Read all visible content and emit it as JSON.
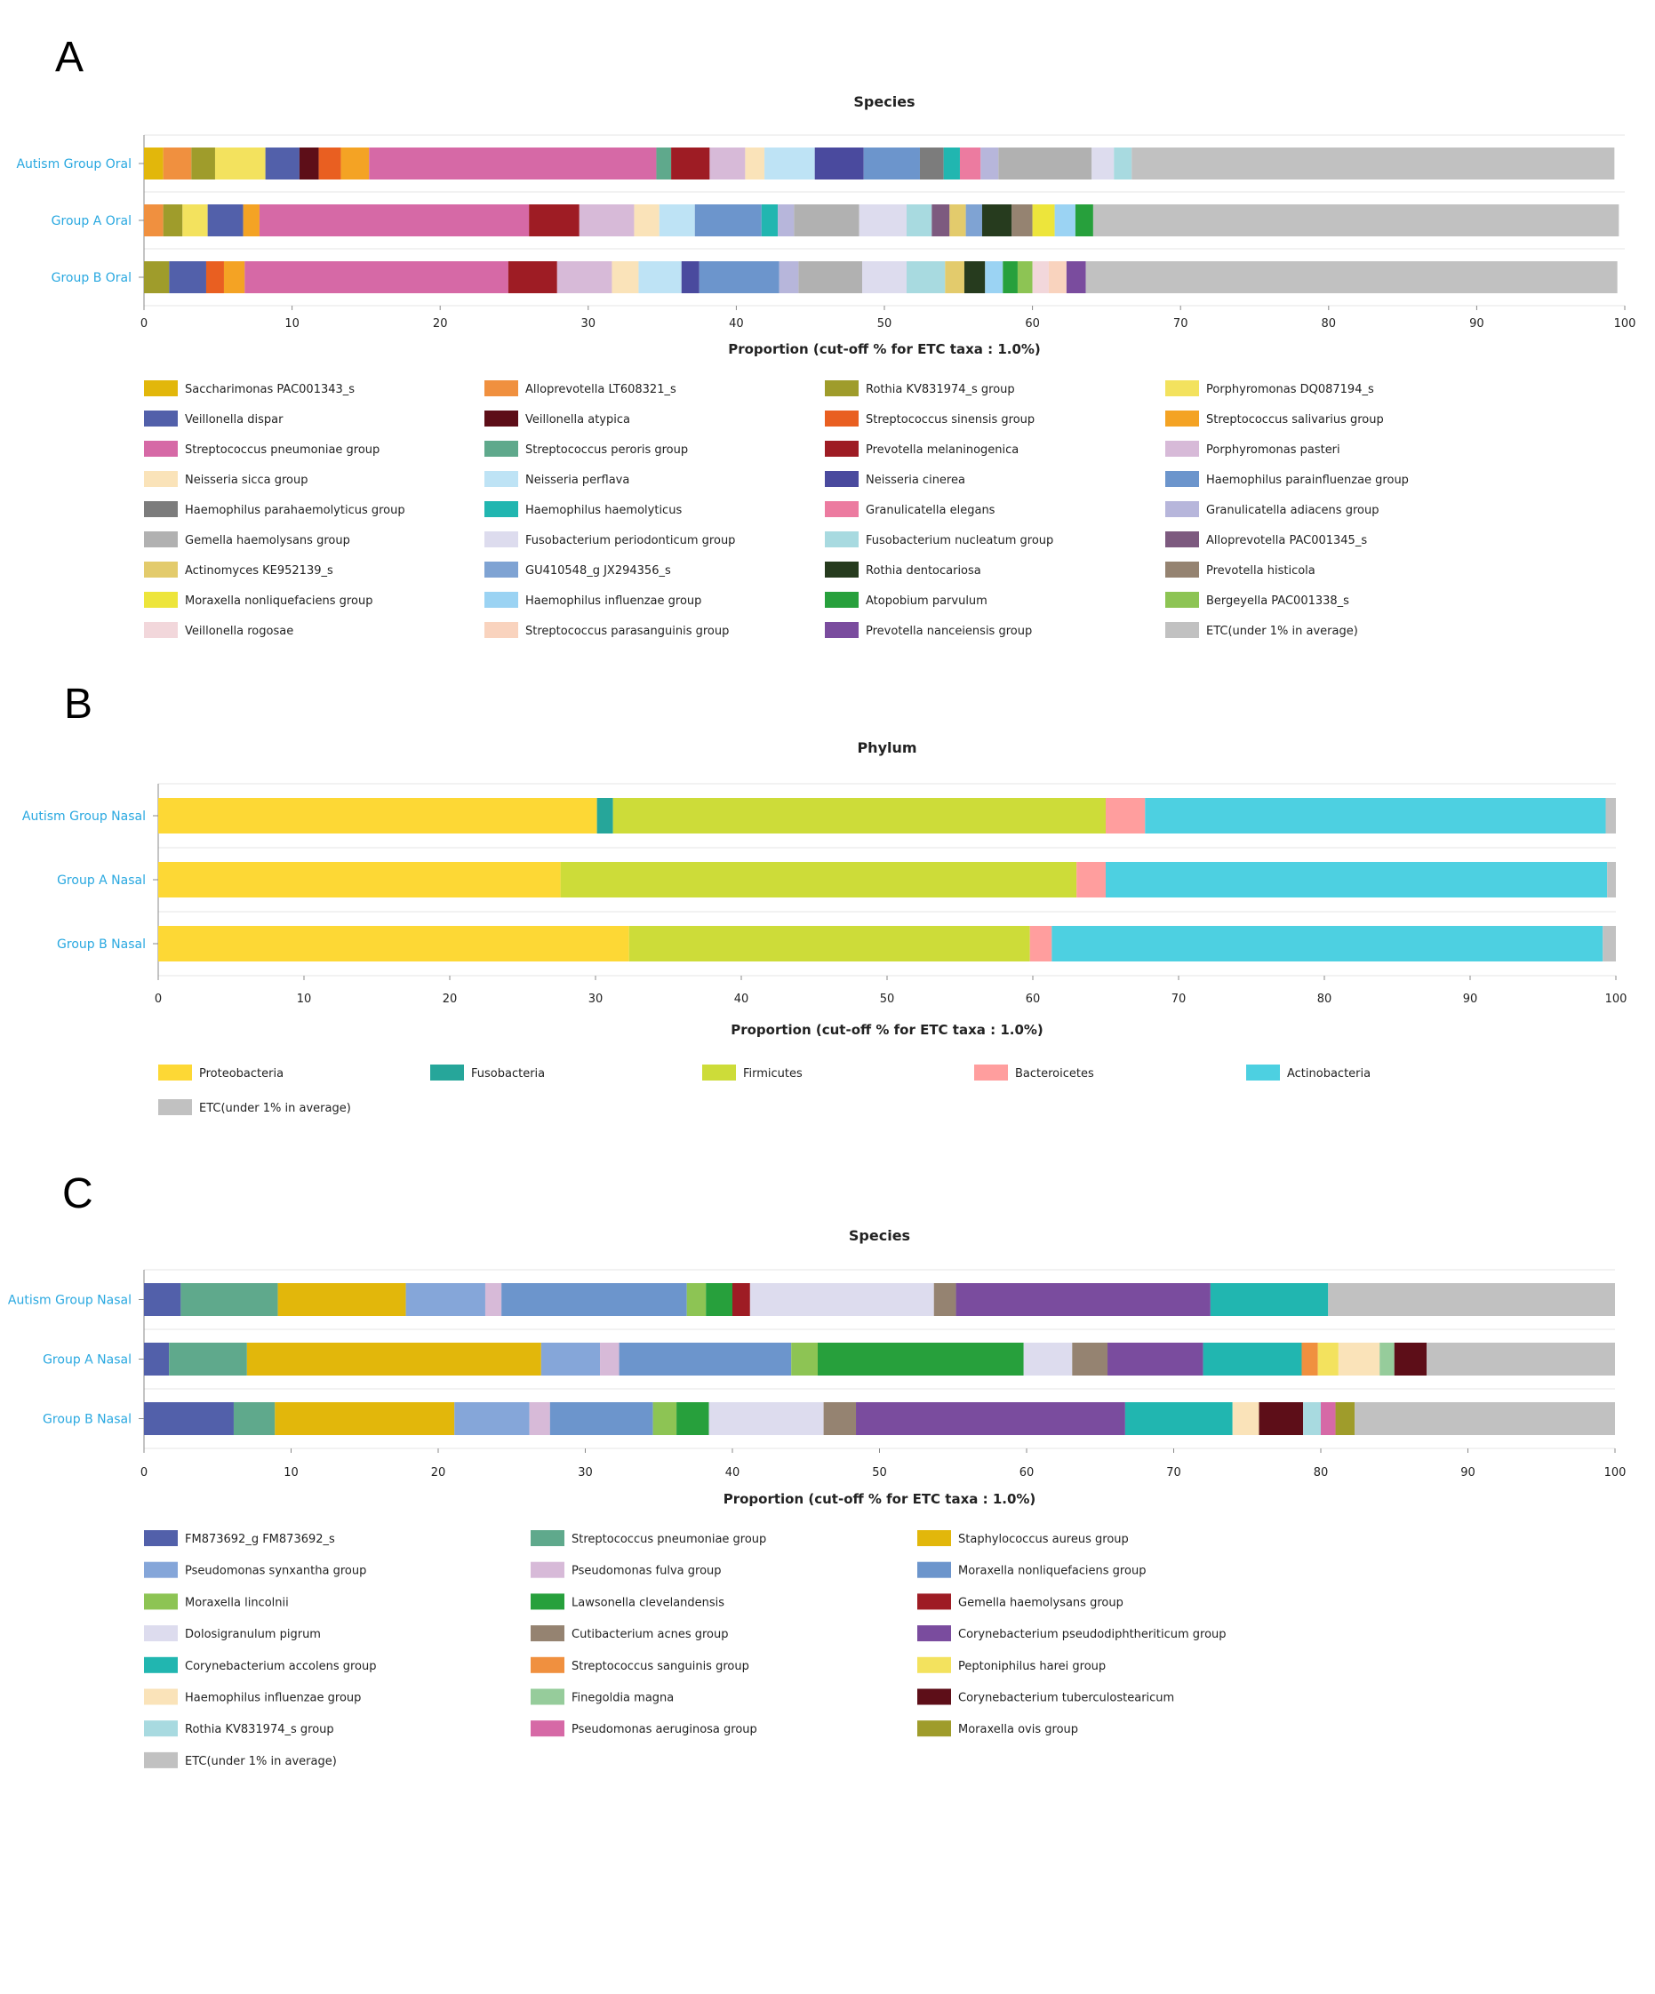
{
  "panels": [
    {
      "letter": "A"
    },
    {
      "letter": "B"
    },
    {
      "letter": "C"
    }
  ],
  "chart_data": [
    {
      "type": "bar",
      "orientation": "horizontal",
      "stacked": true,
      "title": "Species",
      "xlabel": "Proportion (cut-off % for ETC taxa : 1.0%)",
      "xlim": [
        0,
        100
      ],
      "xticks": [
        0,
        10,
        20,
        30,
        40,
        50,
        60,
        70,
        80,
        90,
        100
      ],
      "categories": [
        "Autism Group Oral",
        "Group A Oral",
        "Group B Oral"
      ],
      "legend_position": "bottom",
      "series": [
        {
          "name": "Saccharimonas PAC001343_s",
          "color": "#E2B70B",
          "values": [
            1.3,
            0,
            0
          ]
        },
        {
          "name": "Alloprevotella LT608321_s",
          "color": "#F0903F",
          "values": [
            1.9,
            1.3,
            0
          ]
        },
        {
          "name": "Rothia KV831974_s group",
          "color": "#9F9C2B",
          "values": [
            1.6,
            1.3,
            1.7
          ]
        },
        {
          "name": "Porphyromonas DQ087194_s",
          "color": "#F3E25E",
          "values": [
            3.4,
            1.7,
            0
          ]
        },
        {
          "name": "Veillonella dispar",
          "color": "#5260AA",
          "values": [
            2.3,
            2.4,
            2.5
          ]
        },
        {
          "name": "Veillonella atypica",
          "color": "#5D0E18",
          "values": [
            1.3,
            0,
            0
          ]
        },
        {
          "name": "Streptococcus sinensis group",
          "color": "#E95F21",
          "values": [
            1.5,
            0,
            1.2
          ]
        },
        {
          "name": "Streptococcus salivarius group",
          "color": "#F4A324",
          "values": [
            1.9,
            1.1,
            1.4
          ]
        },
        {
          "name": "Streptococcus pneumoniae group",
          "color": "#D669A6",
          "values": [
            19.4,
            18.2,
            17.8
          ]
        },
        {
          "name": "Streptococcus peroris group",
          "color": "#5FA98C",
          "values": [
            1.0,
            0,
            0
          ]
        },
        {
          "name": "Prevotella melaninogenica",
          "color": "#9E1C24",
          "values": [
            2.6,
            3.4,
            3.3
          ]
        },
        {
          "name": "Porphyromonas pasteri",
          "color": "#D7BAD8",
          "values": [
            2.4,
            3.7,
            3.7
          ]
        },
        {
          "name": "Neisseria sicca group",
          "color": "#FAE3B9",
          "values": [
            1.3,
            1.7,
            1.8
          ]
        },
        {
          "name": "Neisseria perflava",
          "color": "#BEE3F5",
          "values": [
            3.4,
            2.4,
            2.9
          ]
        },
        {
          "name": "Neisseria cinerea",
          "color": "#4A4A9E",
          "values": [
            3.3,
            0,
            1.2
          ]
        },
        {
          "name": "Haemophilus parainfluenzae group",
          "color": "#6C95CC",
          "values": [
            3.8,
            4.5,
            5.4
          ]
        },
        {
          "name": "Haemophilus parahaemolyticus group",
          "color": "#7C7C7C",
          "values": [
            1.6,
            0,
            0
          ]
        },
        {
          "name": "Haemophilus haemolyticus",
          "color": "#21B6B0",
          "values": [
            1.1,
            1.1,
            0
          ]
        },
        {
          "name": "Granulicatella elegans",
          "color": "#EC7BA0",
          "values": [
            1.4,
            0,
            0
          ]
        },
        {
          "name": "Granulicatella adiacens group",
          "color": "#B7B6DB",
          "values": [
            1.2,
            1.1,
            1.3
          ]
        },
        {
          "name": "Gemella haemolysans group",
          "color": "#B1B1B1",
          "values": [
            6.3,
            4.4,
            4.3
          ]
        },
        {
          "name": "Fusobacterium periodonticum group",
          "color": "#DDDCEE",
          "values": [
            1.5,
            3.2,
            3.0
          ]
        },
        {
          "name": "Fusobacterium nucleatum group",
          "color": "#A8DAE0",
          "values": [
            1.2,
            1.7,
            2.6
          ]
        },
        {
          "name": "Alloprevotella PAC001345_s",
          "color": "#7D5A7F",
          "values": [
            0,
            1.2,
            0
          ]
        },
        {
          "name": "Actinomyces KE952139_s",
          "color": "#E3CB6C",
          "values": [
            0,
            1.1,
            1.3
          ]
        },
        {
          "name": "GU410548_g JX294356_s",
          "color": "#7FA3D3",
          "values": [
            0,
            1.1,
            0
          ]
        },
        {
          "name": "Rothia dentocariosa",
          "color": "#263B1E",
          "values": [
            0,
            2.0,
            1.4
          ]
        },
        {
          "name": "Prevotella histicola",
          "color": "#958371",
          "values": [
            0,
            1.4,
            0
          ]
        },
        {
          "name": "Moraxella nonliquefaciens group",
          "color": "#EDE53B",
          "values": [
            0,
            1.5,
            0
          ]
        },
        {
          "name": "Haemophilus influenzae group",
          "color": "#9BD3F3",
          "values": [
            0,
            1.4,
            1.2
          ]
        },
        {
          "name": "Atopobium parvulum",
          "color": "#27A03C",
          "values": [
            0,
            1.2,
            1.0
          ]
        },
        {
          "name": "Bergeyella PAC001338_s",
          "color": "#8DC454",
          "values": [
            0,
            0,
            1.0
          ]
        },
        {
          "name": "Veillonella rogosae",
          "color": "#F2D7DB",
          "values": [
            0,
            0,
            1.1
          ]
        },
        {
          "name": "Streptococcus parasanguinis group",
          "color": "#F9D3BE",
          "values": [
            0,
            0,
            1.2
          ]
        },
        {
          "name": "Prevotella nanceiensis group",
          "color": "#7A4C9E",
          "values": [
            0,
            0,
            1.3
          ]
        },
        {
          "name": "ETC(under 1% in average)",
          "color": "#C1C1C1",
          "values": [
            32.6,
            35.5,
            35.9
          ]
        }
      ]
    },
    {
      "type": "bar",
      "orientation": "horizontal",
      "stacked": true,
      "title": "Phylum",
      "xlabel": "Proportion (cut-off % for ETC taxa : 1.0%)",
      "xlim": [
        0,
        100
      ],
      "xticks": [
        0,
        10,
        20,
        30,
        40,
        50,
        60,
        70,
        80,
        90,
        100
      ],
      "categories": [
        "Autism Group Nasal",
        "Group A Nasal",
        "Group B Nasal"
      ],
      "legend_position": "bottom",
      "series": [
        {
          "name": "Proteobacteria",
          "color": "#FDD835",
          "values": [
            30.1,
            27.6,
            32.3
          ]
        },
        {
          "name": "Fusobacteria",
          "color": "#26A69A",
          "values": [
            1.1,
            0,
            0
          ]
        },
        {
          "name": "Firmicutes",
          "color": "#CDDC39",
          "values": [
            33.8,
            35.4,
            27.5
          ]
        },
        {
          "name": "Bacteroicetes",
          "color": "#FF9E9E",
          "values": [
            2.7,
            2.0,
            1.5
          ]
        },
        {
          "name": "Actinobacteria",
          "color": "#4DD0E1",
          "values": [
            31.6,
            34.4,
            37.8
          ]
        },
        {
          "name": "ETC(under 1% in average)",
          "color": "#C1C1C1",
          "values": [
            0.7,
            0.6,
            0.9
          ]
        }
      ]
    },
    {
      "type": "bar",
      "orientation": "horizontal",
      "stacked": true,
      "title": "Species",
      "xlabel": "Proportion (cut-off % for ETC taxa : 1.0%)",
      "xlim": [
        0,
        100
      ],
      "xticks": [
        0,
        10,
        20,
        30,
        40,
        50,
        60,
        70,
        80,
        90,
        100
      ],
      "categories": [
        "Autism Group Nasal",
        "Group A Nasal",
        "Group B Nasal"
      ],
      "legend_position": "bottom",
      "series": [
        {
          "name": "FM873692_g FM873692_s",
          "color": "#5260AA",
          "values": [
            2.5,
            1.7,
            6.1
          ]
        },
        {
          "name": "Streptococcus pneumoniae group",
          "color": "#5FA98C",
          "values": [
            6.6,
            5.3,
            2.8
          ]
        },
        {
          "name": "Staphylococcus aureus group",
          "color": "#E2B70B",
          "values": [
            8.7,
            20.0,
            12.2
          ]
        },
        {
          "name": "Pseudomonas synxantha group",
          "color": "#85A6D9",
          "values": [
            5.4,
            4.0,
            5.1
          ]
        },
        {
          "name": "Pseudomonas fulva group",
          "color": "#D7BAD8",
          "values": [
            1.1,
            1.3,
            1.4
          ]
        },
        {
          "name": "Moraxella nonliquefaciens group",
          "color": "#6C95CC",
          "values": [
            12.6,
            11.7,
            7.0
          ]
        },
        {
          "name": "Moraxella lincolnii",
          "color": "#8DC454",
          "values": [
            1.3,
            1.8,
            1.6
          ]
        },
        {
          "name": "Lawsonella clevelandensis",
          "color": "#27A03C",
          "values": [
            1.8,
            14.0,
            2.2
          ]
        },
        {
          "name": "Gemella haemolysans group",
          "color": "#9E1C24",
          "values": [
            1.2,
            0,
            0
          ]
        },
        {
          "name": "Dolosigranulum pigrum",
          "color": "#DDDCEE",
          "values": [
            12.5,
            3.3,
            7.8
          ]
        },
        {
          "name": "Cutibacterium acnes group",
          "color": "#958371",
          "values": [
            1.5,
            2.4,
            2.2
          ]
        },
        {
          "name": "Corynebacterium pseudodiphtheriticum group",
          "color": "#7A4C9E",
          "values": [
            17.3,
            6.5,
            18.3
          ]
        },
        {
          "name": "Corynebacterium accolens group",
          "color": "#21B6B0",
          "values": [
            8.0,
            6.7,
            7.3
          ]
        },
        {
          "name": "Streptococcus sanguinis group",
          "color": "#F0903F",
          "values": [
            0,
            1.1,
            0
          ]
        },
        {
          "name": "Peptoniphilus harei group",
          "color": "#F3E25E",
          "values": [
            0,
            1.4,
            0
          ]
        },
        {
          "name": "Haemophilus influenzae group",
          "color": "#FAE3B9",
          "values": [
            0,
            2.8,
            1.8
          ]
        },
        {
          "name": "Finegoldia magna",
          "color": "#96CC9B",
          "values": [
            0,
            1.0,
            0
          ]
        },
        {
          "name": "Corynebacterium tuberculostearicum",
          "color": "#5D0E18",
          "values": [
            0,
            2.2,
            3.0
          ]
        },
        {
          "name": "Rothia KV831974_s group",
          "color": "#A8DAE0",
          "values": [
            0,
            0,
            1.2
          ]
        },
        {
          "name": "Pseudomonas aeruginosa group",
          "color": "#D669A6",
          "values": [
            0,
            0,
            1.0
          ]
        },
        {
          "name": "Moraxella ovis group",
          "color": "#9F9C2B",
          "values": [
            0,
            0,
            1.3
          ]
        },
        {
          "name": "ETC(under 1% in average)",
          "color": "#C1C1C1",
          "values": [
            19.5,
            12.8,
            17.7
          ]
        }
      ]
    }
  ]
}
